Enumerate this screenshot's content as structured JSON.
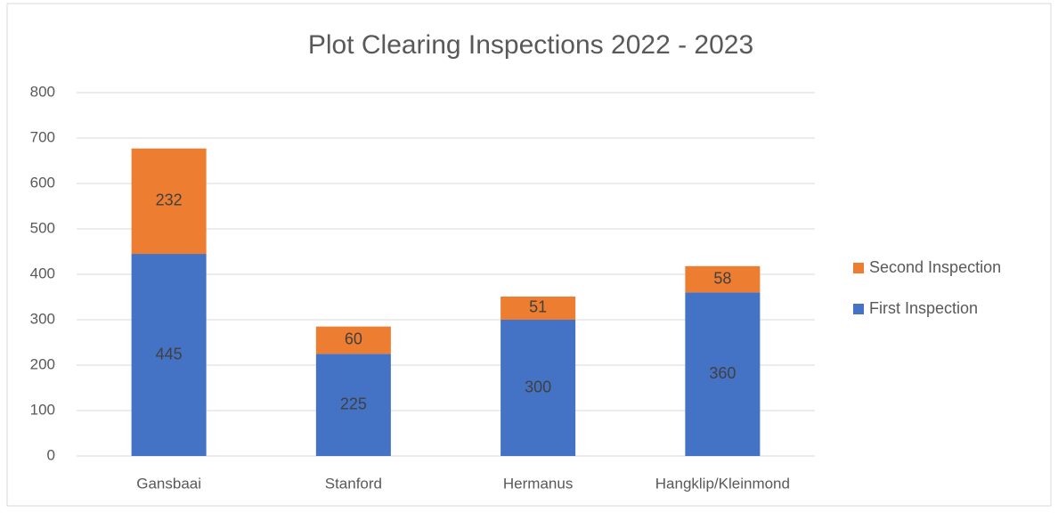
{
  "chart_data": {
    "type": "stacked_bar",
    "title": "Plot Clearing Inspections 2022 - 2023",
    "categories": [
      "Gansbaai",
      "Stanford",
      "Hermanus",
      "Hangklip/Kleinmond"
    ],
    "series": [
      {
        "name": "First Inspection",
        "color": "#4472c4",
        "values": [
          445,
          225,
          300,
          360
        ]
      },
      {
        "name": "Second Inspection",
        "color": "#ed7d31",
        "values": [
          232,
          60,
          51,
          58
        ]
      }
    ],
    "ylim": [
      0,
      800
    ],
    "yticks": [
      0,
      100,
      200,
      300,
      400,
      500,
      600,
      700,
      800
    ],
    "grid": true,
    "legend": "right"
  }
}
